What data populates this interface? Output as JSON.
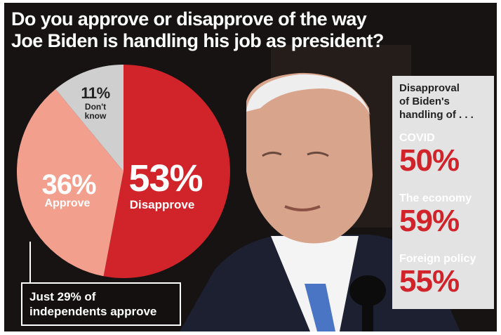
{
  "title": {
    "line1": "Do you approve or disapprove of the way",
    "line2": "Joe Biden is handling his job as president?"
  },
  "chart_data": [
    {
      "type": "pie",
      "slices": [
        {
          "label": "Disapprove",
          "value": 53,
          "display": "53%",
          "color": "#d1232a"
        },
        {
          "label": "Approve",
          "value": 36,
          "display": "36%",
          "color": "#f2a08d"
        },
        {
          "label": "Don't know",
          "value": 11,
          "display": "11%",
          "color": "#cfcfcf"
        }
      ],
      "label_lines": {
        "dont_know": [
          "Don't",
          "know"
        ]
      },
      "annotation": {
        "line1": "Just 29% of",
        "line2": "independents approve"
      }
    },
    {
      "type": "table",
      "heading_lines": [
        "Disapproval",
        "of Biden's",
        "handling of . . ."
      ],
      "rows": [
        {
          "label": "COVID",
          "value": 50,
          "display": "50%"
        },
        {
          "label": "The economy",
          "value": 59,
          "display": "59%"
        },
        {
          "label": "Foreign policy",
          "value": 55,
          "display": "55%"
        }
      ]
    }
  ],
  "colors": {
    "background": "#161312",
    "disapprove_red": "#d1232a",
    "approve_salmon": "#f2a08d",
    "dont_know_gray": "#cfcfcf",
    "panel_gray": "#e3e3e3"
  }
}
